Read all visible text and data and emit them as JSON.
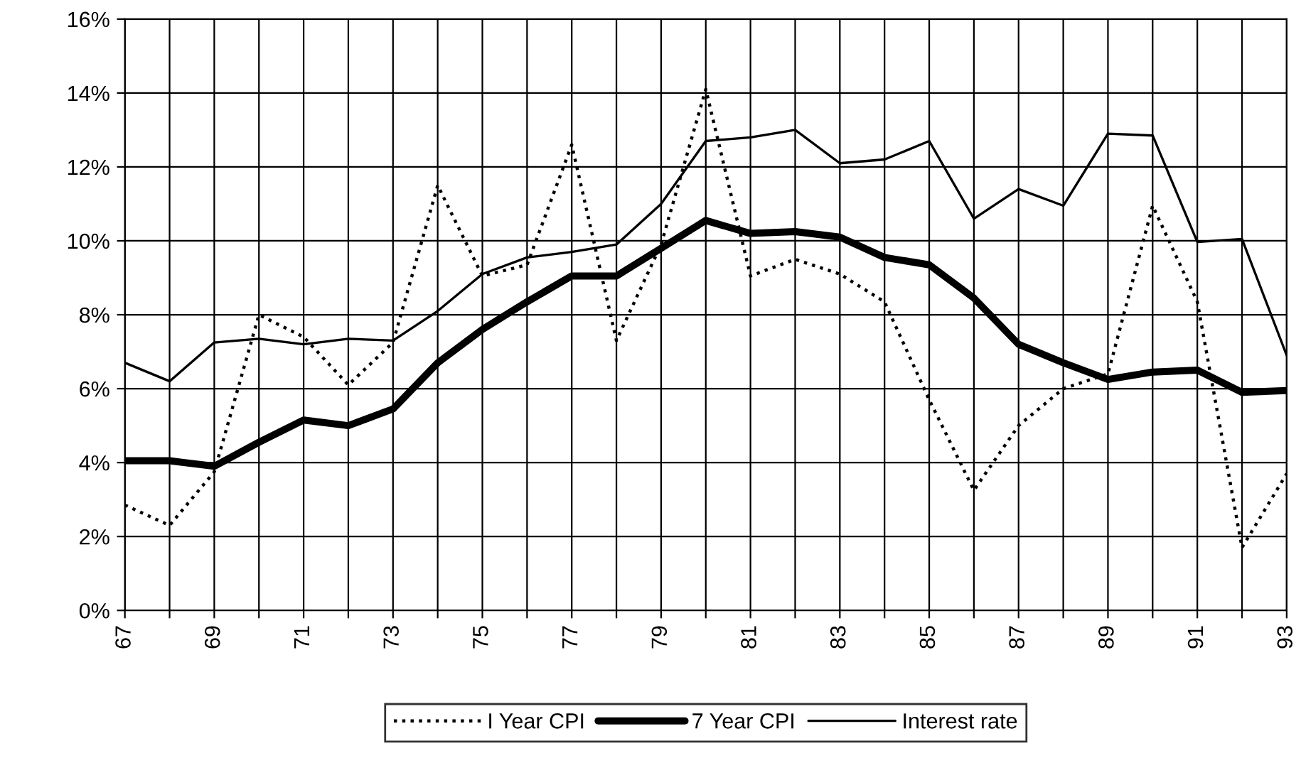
{
  "chart_data": {
    "type": "line",
    "x": [
      67,
      68,
      69,
      70,
      71,
      72,
      73,
      74,
      75,
      76,
      77,
      78,
      79,
      80,
      81,
      82,
      83,
      84,
      85,
      86,
      87,
      88,
      89,
      90,
      91,
      92,
      93
    ],
    "series": [
      {
        "name": "I Year CPI",
        "color": "#000000",
        "line_style": "dotted",
        "values": [
          2.85,
          2.3,
          3.75,
          8.0,
          7.4,
          6.1,
          7.25,
          11.5,
          9.05,
          9.35,
          12.6,
          7.3,
          9.9,
          14.1,
          9.05,
          9.5,
          9.1,
          8.35,
          5.7,
          3.25,
          5.0,
          6.0,
          6.4,
          10.95,
          8.35,
          1.7,
          3.7
        ]
      },
      {
        "name": "7 Year CPI",
        "color": "#000000",
        "line_style": "solid",
        "values": [
          4.05,
          4.05,
          3.9,
          4.55,
          5.15,
          5.0,
          5.45,
          6.7,
          7.6,
          8.35,
          9.05,
          9.05,
          9.8,
          10.55,
          10.2,
          10.25,
          10.1,
          9.55,
          9.35,
          8.45,
          7.2,
          6.7,
          6.25,
          6.45,
          6.5,
          5.9,
          5.95
        ]
      },
      {
        "name": "Interest rate",
        "color": "#000000",
        "line_style": "solid",
        "values": [
          6.7,
          6.2,
          7.25,
          7.35,
          7.2,
          7.35,
          7.3,
          8.1,
          9.1,
          9.55,
          9.7,
          9.9,
          11.0,
          12.7,
          12.8,
          13.0,
          12.1,
          12.2,
          12.7,
          10.6,
          11.4,
          10.95,
          12.9,
          12.85,
          9.97,
          10.05,
          6.9
        ]
      }
    ],
    "xlim": [
      67,
      93
    ],
    "xticks": [
      {
        "value": 67,
        "label": "67"
      },
      {
        "value": 68,
        "label": null
      },
      {
        "value": 69,
        "label": "69"
      },
      {
        "value": 70,
        "label": null
      },
      {
        "value": 71,
        "label": "71"
      },
      {
        "value": 72,
        "label": null
      },
      {
        "value": 73,
        "label": "73"
      },
      {
        "value": 74,
        "label": null
      },
      {
        "value": 75,
        "label": "75"
      },
      {
        "value": 76,
        "label": null
      },
      {
        "value": 77,
        "label": "77"
      },
      {
        "value": 78,
        "label": null
      },
      {
        "value": 79,
        "label": "79"
      },
      {
        "value": 80,
        "label": null
      },
      {
        "value": 81,
        "label": "81"
      },
      {
        "value": 82,
        "label": null
      },
      {
        "value": 83,
        "label": "83"
      },
      {
        "value": 84,
        "label": null
      },
      {
        "value": 85,
        "label": "85"
      },
      {
        "value": 86,
        "label": null
      },
      {
        "value": 87,
        "label": "87"
      },
      {
        "value": 88,
        "label": null
      },
      {
        "value": 89,
        "label": "89"
      },
      {
        "value": 90,
        "label": null
      },
      {
        "value": 91,
        "label": "91"
      },
      {
        "value": 92,
        "label": null
      },
      {
        "value": 93,
        "label": "93"
      }
    ],
    "ylim": [
      0,
      16
    ],
    "yticks": [
      {
        "value": 0,
        "label": "0%"
      },
      {
        "value": 2,
        "label": "2%"
      },
      {
        "value": 4,
        "label": "4%"
      },
      {
        "value": 6,
        "label": "6%"
      },
      {
        "value": 8,
        "label": "8%"
      },
      {
        "value": 10,
        "label": "10%"
      },
      {
        "value": 12,
        "label": "12%"
      },
      {
        "value": 14,
        "label": "14%"
      },
      {
        "value": 16,
        "label": "16%"
      }
    ],
    "grid": true,
    "legend": "bottom"
  }
}
